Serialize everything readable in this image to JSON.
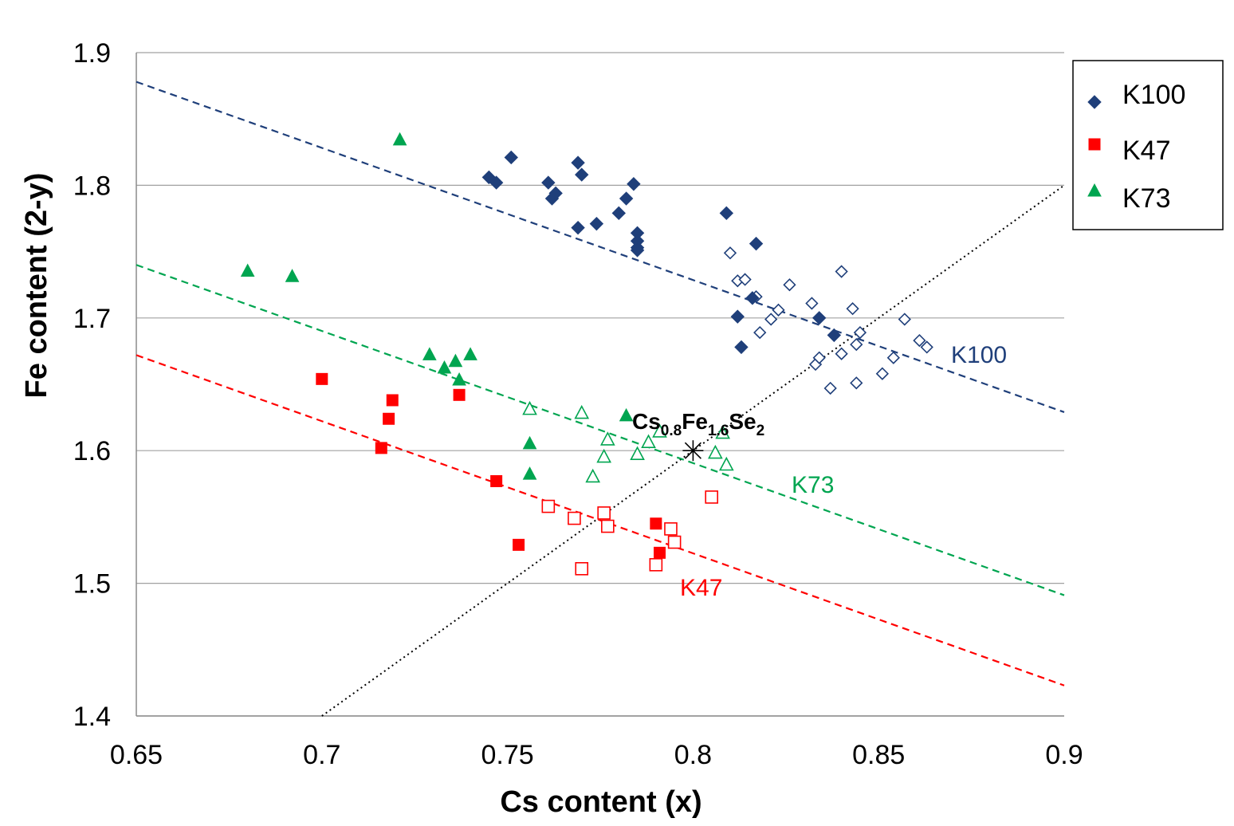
{
  "chart_data": {
    "type": "scatter",
    "xlabel": "Cs content (x)",
    "ylabel": "Fe content (2-y)",
    "xlim": [
      0.65,
      0.9
    ],
    "ylim": [
      1.4,
      1.9
    ],
    "xticks": [
      "0.65",
      "0.7",
      "0.75",
      "0.8",
      "0.85",
      "0.9"
    ],
    "yticks": [
      "1.4",
      "1.5",
      "1.6",
      "1.7",
      "1.8",
      "1.9"
    ],
    "grid": "horizontal",
    "legend": {
      "position": "top-right",
      "entries": [
        "K100",
        "K47",
        "K73"
      ]
    },
    "colors": {
      "K100": "#1f3f7a",
      "K47": "#ff0000",
      "K73": "#00a550",
      "reference": "#000000"
    },
    "series": [
      {
        "name": "K100",
        "marker": "diamond",
        "filled": [
          [
            0.745,
            1.806
          ],
          [
            0.747,
            1.802
          ],
          [
            0.751,
            1.821
          ],
          [
            0.761,
            1.802
          ],
          [
            0.762,
            1.79
          ],
          [
            0.763,
            1.794
          ],
          [
            0.769,
            1.817
          ],
          [
            0.77,
            1.808
          ],
          [
            0.769,
            1.768
          ],
          [
            0.774,
            1.771
          ],
          [
            0.78,
            1.779
          ],
          [
            0.782,
            1.79
          ],
          [
            0.784,
            1.801
          ],
          [
            0.785,
            1.764
          ],
          [
            0.785,
            1.758
          ],
          [
            0.785,
            1.753
          ],
          [
            0.785,
            1.751
          ],
          [
            0.809,
            1.779
          ],
          [
            0.817,
            1.756
          ],
          [
            0.812,
            1.701
          ],
          [
            0.813,
            1.678
          ],
          [
            0.816,
            1.715
          ],
          [
            0.834,
            1.7
          ],
          [
            0.838,
            1.687
          ]
        ],
        "open": [
          [
            0.81,
            1.749
          ],
          [
            0.812,
            1.728
          ],
          [
            0.814,
            1.729
          ],
          [
            0.817,
            1.716
          ],
          [
            0.818,
            1.689
          ],
          [
            0.821,
            1.699
          ],
          [
            0.823,
            1.706
          ],
          [
            0.826,
            1.725
          ],
          [
            0.832,
            1.711
          ],
          [
            0.833,
            1.665
          ],
          [
            0.834,
            1.67
          ],
          [
            0.837,
            1.647
          ],
          [
            0.84,
            1.735
          ],
          [
            0.84,
            1.673
          ],
          [
            0.843,
            1.707
          ],
          [
            0.844,
            1.68
          ],
          [
            0.845,
            1.689
          ],
          [
            0.844,
            1.651
          ],
          [
            0.851,
            1.658
          ],
          [
            0.854,
            1.67
          ],
          [
            0.857,
            1.699
          ],
          [
            0.861,
            1.683
          ],
          [
            0.863,
            1.678
          ]
        ]
      },
      {
        "name": "K47",
        "marker": "square",
        "filled": [
          [
            0.7,
            1.654
          ],
          [
            0.719,
            1.638
          ],
          [
            0.718,
            1.624
          ],
          [
            0.716,
            1.602
          ],
          [
            0.737,
            1.642
          ],
          [
            0.747,
            1.577
          ],
          [
            0.753,
            1.529
          ],
          [
            0.79,
            1.545
          ],
          [
            0.791,
            1.523
          ]
        ],
        "open": [
          [
            0.761,
            1.558
          ],
          [
            0.768,
            1.549
          ],
          [
            0.776,
            1.553
          ],
          [
            0.777,
            1.543
          ],
          [
            0.77,
            1.511
          ],
          [
            0.79,
            1.514
          ],
          [
            0.794,
            1.541
          ],
          [
            0.795,
            1.531
          ],
          [
            0.805,
            1.565
          ]
        ]
      },
      {
        "name": "K73",
        "marker": "triangle",
        "filled": [
          [
            0.721,
            1.834
          ],
          [
            0.68,
            1.735
          ],
          [
            0.692,
            1.731
          ],
          [
            0.729,
            1.672
          ],
          [
            0.733,
            1.662
          ],
          [
            0.736,
            1.667
          ],
          [
            0.74,
            1.672
          ],
          [
            0.737,
            1.653
          ],
          [
            0.782,
            1.626
          ],
          [
            0.756,
            1.605
          ],
          [
            0.756,
            1.582
          ]
        ],
        "open": [
          [
            0.756,
            1.631
          ],
          [
            0.77,
            1.628
          ],
          [
            0.777,
            1.608
          ],
          [
            0.776,
            1.595
          ],
          [
            0.773,
            1.58
          ],
          [
            0.785,
            1.597
          ],
          [
            0.788,
            1.606
          ],
          [
            0.791,
            1.614
          ],
          [
            0.806,
            1.598
          ],
          [
            0.808,
            1.613
          ],
          [
            0.809,
            1.589
          ]
        ]
      }
    ],
    "fit_lines": [
      {
        "name": "K100",
        "label": "K100",
        "from": [
          0.65,
          1.878
        ],
        "to": [
          0.9,
          1.629
        ]
      },
      {
        "name": "K73",
        "label": "K73",
        "from": [
          0.65,
          1.74
        ],
        "to": [
          0.9,
          1.491
        ]
      },
      {
        "name": "K47",
        "label": "K47",
        "from": [
          0.65,
          1.672
        ],
        "to": [
          0.9,
          1.423
        ]
      }
    ],
    "reference_line": {
      "from": [
        0.7,
        1.4
      ],
      "to": [
        0.9,
        1.8
      ]
    },
    "annotation": {
      "point": [
        0.8,
        1.6
      ],
      "text_main": "Cs",
      "sub1": "0.8",
      "text_mid": "Fe",
      "sub2": "1.6",
      "text_end": "Se",
      "sub3": "2"
    }
  }
}
